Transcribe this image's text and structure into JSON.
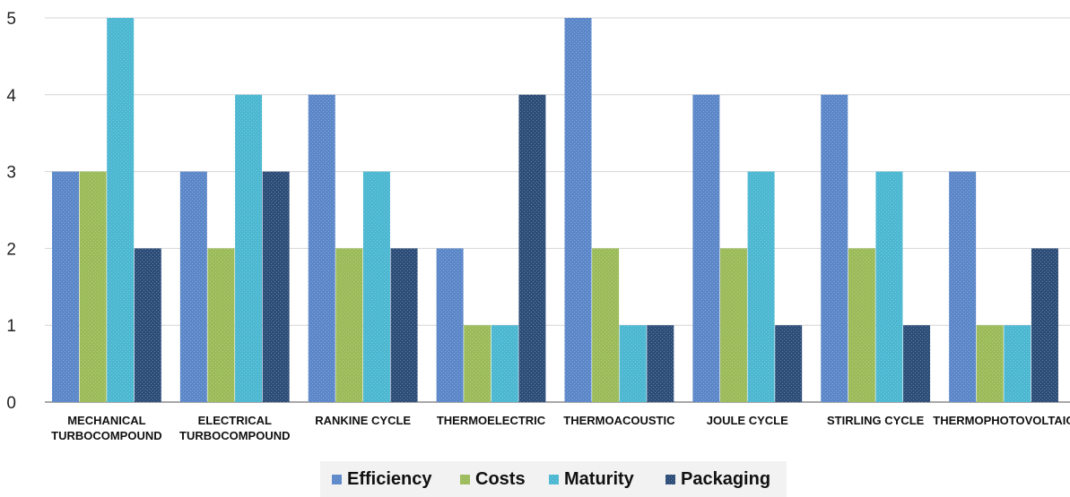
{
  "chart_data": {
    "type": "bar",
    "title": "",
    "xlabel": "",
    "ylabel": "",
    "ylim": [
      0,
      5
    ],
    "yticks": [
      "0",
      "1",
      "2",
      "3",
      "4",
      "5"
    ],
    "grid": true,
    "legend_position": "bottom",
    "categories": [
      [
        "MECHANICAL",
        "TURBOCOMPOUND"
      ],
      [
        "ELECTRICAL",
        "TURBOCOMPOUND"
      ],
      [
        "RANKINE CYCLE"
      ],
      [
        "THERMOELECTRIC"
      ],
      [
        "THERMOACOUSTIC"
      ],
      [
        "JOULE CYCLE"
      ],
      [
        "STIRLING CYCLE"
      ],
      [
        "THERMOPHOTOVOLTAIC"
      ]
    ],
    "series": [
      {
        "name": "Efficiency",
        "color": "#5b87c9",
        "values": [
          3,
          3,
          4,
          2,
          5,
          4,
          4,
          3
        ]
      },
      {
        "name": "Costs",
        "color": "#9bbb59",
        "values": [
          3,
          2,
          2,
          1,
          2,
          2,
          2,
          1
        ]
      },
      {
        "name": "Maturity",
        "color": "#4bb7d1",
        "values": [
          5,
          4,
          3,
          1,
          1,
          3,
          3,
          1
        ]
      },
      {
        "name": "Packaging",
        "color": "#2d4d79",
        "values": [
          2,
          3,
          2,
          4,
          1,
          1,
          1,
          2
        ]
      }
    ]
  }
}
